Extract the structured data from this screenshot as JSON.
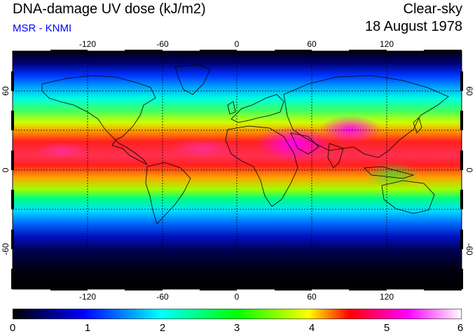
{
  "header": {
    "title": "DNA-damage UV dose (kJ/m2)",
    "subtitle": "MSR - KNMI",
    "sky": "Clear-sky",
    "date": "18 August 1978"
  },
  "map": {
    "lon_ticks": [
      "-120",
      "-60",
      "0",
      "60",
      "120"
    ],
    "lat_ticks": [
      "60",
      "0",
      "-60"
    ],
    "lon_range": [
      -180,
      180
    ],
    "lat_range": [
      -90,
      90
    ],
    "gridlines": "dashed"
  },
  "colorbar": {
    "labels": [
      "0",
      "1",
      "2",
      "3",
      "4",
      "5",
      "6"
    ],
    "range": [
      0,
      6
    ],
    "colors": [
      "#000000",
      "#0000ff",
      "#00ffff",
      "#00ff00",
      "#ffff00",
      "#ff0000",
      "#ff00ff",
      "#ffffff"
    ]
  }
}
